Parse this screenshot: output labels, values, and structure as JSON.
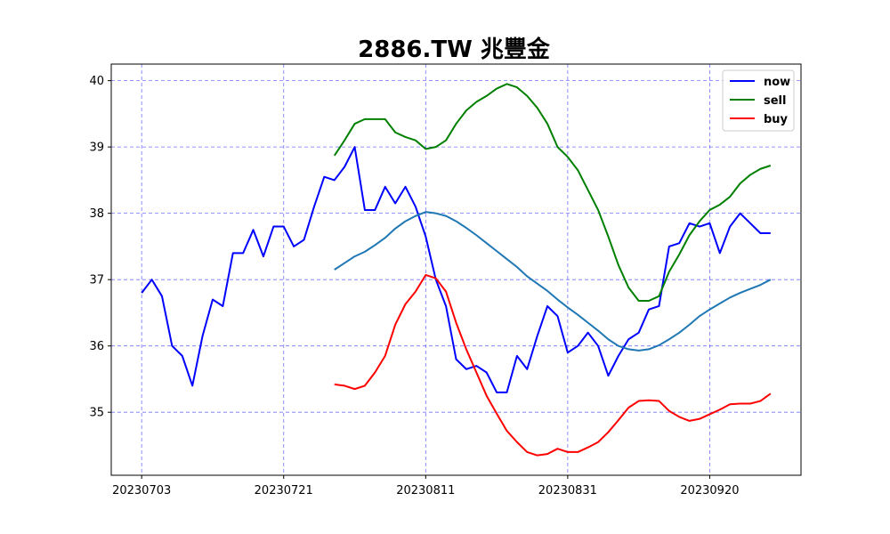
{
  "chart_data": {
    "type": "line",
    "title": "2886.TW 兆豐金",
    "xlabel": "",
    "ylabel": "",
    "x_tick_labels": [
      "20230703",
      "20230721",
      "20230811",
      "20230831",
      "20230920"
    ],
    "x_tick_index": [
      0,
      14,
      28,
      42,
      56
    ],
    "xlim": [
      -3,
      65
    ],
    "ylim": [
      34.05,
      40.25
    ],
    "y_ticks": [
      35,
      36,
      37,
      38,
      39,
      40
    ],
    "grid": true,
    "legend_position": "top-right",
    "legend": [
      "now",
      "sell",
      "buy"
    ],
    "colors": {
      "now": "#0000ff",
      "sell": "#008000",
      "buy": "#ff0000",
      "ma": "#1f77b4",
      "grid": "#0000ff"
    },
    "series": [
      {
        "name": "now",
        "key": "now",
        "start": 0,
        "values": [
          36.8,
          37.0,
          36.75,
          36.0,
          35.85,
          35.4,
          36.15,
          36.7,
          36.6,
          37.4,
          37.4,
          37.75,
          37.35,
          37.8,
          37.8,
          37.5,
          37.6,
          38.1,
          38.55,
          38.5,
          38.7,
          39.0,
          38.05,
          38.05,
          38.4,
          38.15,
          38.4,
          38.1,
          37.65,
          37.0,
          36.6,
          35.8,
          35.65,
          35.7,
          35.6,
          35.3,
          35.3,
          35.85,
          35.65,
          36.15,
          36.6,
          36.45,
          35.9,
          36.0,
          36.2,
          36.0,
          35.55,
          35.85,
          36.1,
          36.2,
          36.55,
          36.6,
          37.5,
          37.55,
          37.85,
          37.8,
          37.85,
          37.4,
          37.8,
          38.0,
          37.85,
          37.7,
          37.7
        ]
      },
      {
        "name": "sell",
        "key": "sell",
        "start": 19,
        "values": [
          38.87,
          39.1,
          39.35,
          39.42,
          39.42,
          39.42,
          39.22,
          39.15,
          39.1,
          38.97,
          39.0,
          39.1,
          39.35,
          39.55,
          39.68,
          39.77,
          39.88,
          39.95,
          39.9,
          39.77,
          39.59,
          39.35,
          39.0,
          38.85,
          38.65,
          38.35,
          38.05,
          37.65,
          37.22,
          36.88,
          36.68,
          36.68,
          36.75,
          37.12,
          37.38,
          37.67,
          37.88,
          38.05,
          38.13,
          38.25,
          38.45,
          38.58,
          38.67,
          38.72
        ]
      },
      {
        "name": "buy",
        "key": "buy",
        "start": 19,
        "values": [
          35.42,
          35.4,
          35.35,
          35.4,
          35.6,
          35.85,
          36.32,
          36.63,
          36.82,
          37.07,
          37.02,
          36.82,
          36.35,
          35.95,
          35.6,
          35.25,
          34.98,
          34.72,
          34.55,
          34.4,
          34.35,
          34.37,
          34.45,
          34.4,
          34.4,
          34.47,
          34.55,
          34.7,
          34.88,
          35.07,
          35.17,
          35.18,
          35.17,
          35.02,
          34.93,
          34.87,
          34.9,
          34.97,
          35.04,
          35.12,
          35.13,
          35.13,
          35.17,
          35.28
        ]
      },
      {
        "name": "",
        "key": "ma",
        "start": 19,
        "values": [
          37.15,
          37.25,
          37.35,
          37.42,
          37.52,
          37.63,
          37.77,
          37.88,
          37.96,
          38.02,
          38.0,
          37.96,
          37.88,
          37.78,
          37.67,
          37.55,
          37.43,
          37.31,
          37.19,
          37.05,
          36.94,
          36.83,
          36.7,
          36.58,
          36.47,
          36.35,
          36.23,
          36.1,
          36.0,
          35.95,
          35.93,
          35.95,
          36.01,
          36.1,
          36.2,
          36.32,
          36.45,
          36.55,
          36.64,
          36.73,
          36.8,
          36.86,
          36.92,
          37.0
        ]
      }
    ]
  }
}
